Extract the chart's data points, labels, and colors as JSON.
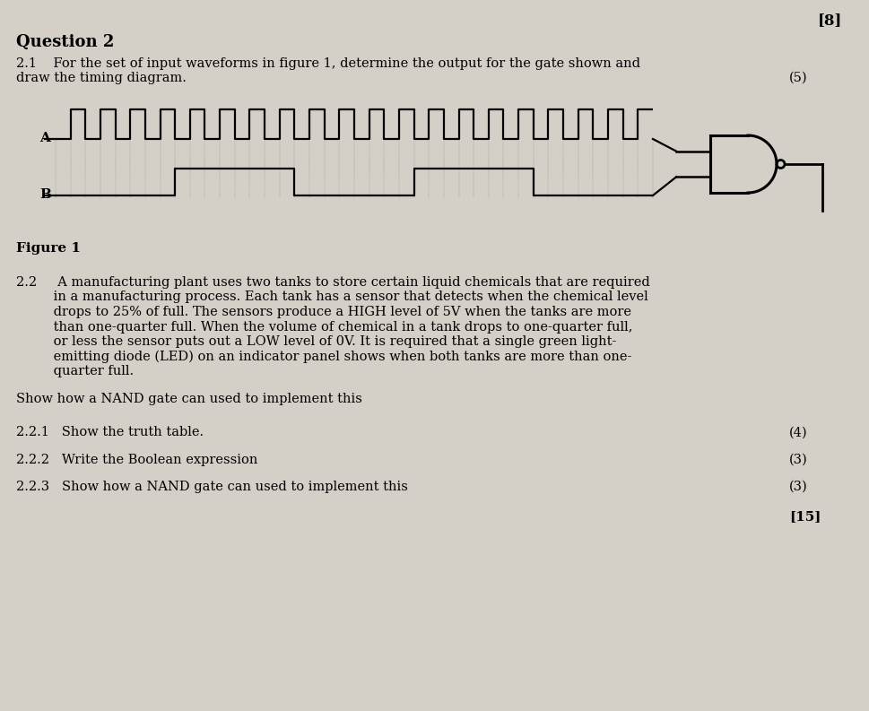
{
  "bg_color": "#d4d0c8",
  "text_color": "#000000",
  "mark_top_right": "[8]",
  "q21_line1": "2.1    For the set of input waveforms in figure 1, determine the output for the gate shown and",
  "q21_line2": "draw the timing diagram.",
  "q21_marks": "(5)",
  "figure_label": "Figure 1",
  "q22_lines": [
    "2.2     A manufacturing plant uses two tanks to store certain liquid chemicals that are required",
    "         in a manufacturing process. Each tank has a sensor that detects when the chemical level",
    "         drops to 25% of full. The sensors produce a HIGH level of 5V when the tanks are more",
    "         than one-quarter full. When the volume of chemical in a tank drops to one-quarter full,",
    "         or less the sensor puts out a LOW level of 0V. It is required that a single green light-",
    "         emitting diode (LED) on an indicator panel shows when both tanks are more than one-",
    "         quarter full."
  ],
  "show_nand": "Show how a NAND gate can used to implement this",
  "q221": "2.2.1   Show the truth table.",
  "q221_marks": "(4)",
  "q222": "2.2.2   Write the Boolean expression",
  "q222_marks": "(3)",
  "q223": "2.2.3   Show how a NAND gate can used to implement this",
  "q223_marks": "(3)",
  "total_marks": "[15]",
  "waveform_A": [
    0,
    1,
    0,
    1,
    0,
    1,
    0,
    1,
    0,
    1,
    0,
    1,
    0,
    1,
    0,
    1,
    0,
    1,
    0,
    1,
    0,
    1,
    0,
    1,
    0,
    1,
    0,
    1,
    0,
    1,
    0,
    1,
    0,
    1,
    0,
    1,
    0,
    1,
    0,
    1
  ],
  "waveform_B": [
    0,
    0,
    0,
    0,
    0,
    0,
    0,
    0,
    1,
    1,
    1,
    1,
    1,
    1,
    1,
    1,
    0,
    0,
    0,
    0,
    0,
    0,
    0,
    0,
    1,
    1,
    1,
    1,
    1,
    1,
    1,
    1,
    0,
    0,
    0,
    0,
    0,
    0,
    0,
    0
  ]
}
